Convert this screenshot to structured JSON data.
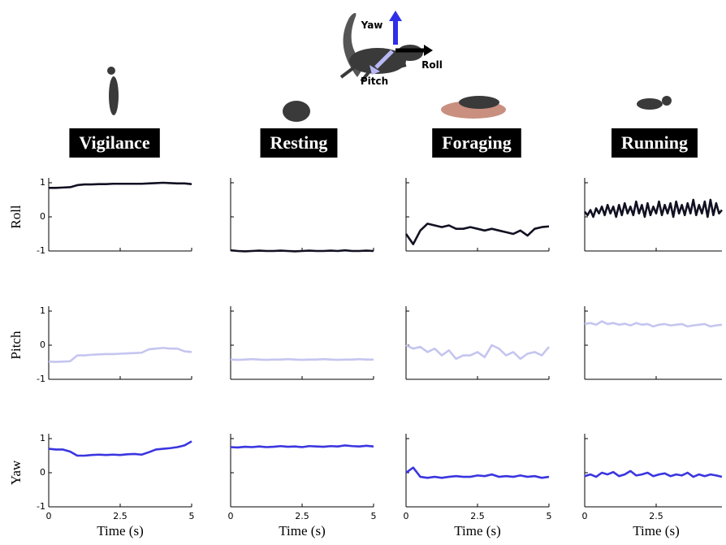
{
  "axes_diagram": {
    "yaw": "Yaw",
    "roll": "Roll",
    "pitch": "Pitch"
  },
  "columns": [
    "Vigilance",
    "Resting",
    "Foraging",
    "Running"
  ],
  "chart_data": [
    {
      "type": "line",
      "ylabel": "Roll",
      "color": "#111122",
      "xlim": [
        0,
        5
      ],
      "ylim": [
        -1,
        1
      ],
      "xticks": [
        0,
        2.5,
        5
      ],
      "yticks": [
        -1,
        0,
        1
      ],
      "x": [
        0,
        0.25,
        0.5,
        0.75,
        1,
        1.25,
        1.5,
        1.75,
        2,
        2.25,
        2.5,
        2.75,
        3,
        3.25,
        3.5,
        3.75,
        4,
        4.25,
        4.5,
        4.75,
        5
      ],
      "values": [
        0.85,
        0.85,
        0.86,
        0.87,
        0.93,
        0.95,
        0.95,
        0.96,
        0.96,
        0.97,
        0.97,
        0.97,
        0.97,
        0.97,
        0.98,
        0.99,
        1.0,
        0.99,
        0.98,
        0.98,
        0.96
      ]
    },
    {
      "type": "line",
      "color": "#111122",
      "xlim": [
        0,
        5
      ],
      "ylim": [
        -1,
        1
      ],
      "xticks": [
        0,
        2.5,
        5
      ],
      "yticks": [
        -1,
        0,
        1
      ],
      "x": [
        0,
        0.25,
        0.5,
        0.75,
        1,
        1.25,
        1.5,
        1.75,
        2,
        2.25,
        2.5,
        2.75,
        3,
        3.25,
        3.5,
        3.75,
        4,
        4.25,
        4.5,
        4.75,
        5
      ],
      "values": [
        -0.98,
        -1.0,
        -1.01,
        -1.0,
        -0.99,
        -1.0,
        -1.0,
        -0.99,
        -1.0,
        -1.01,
        -1.0,
        -0.99,
        -1.0,
        -1.0,
        -0.99,
        -1.0,
        -0.98,
        -1.0,
        -1.0,
        -0.99,
        -1.0
      ]
    },
    {
      "type": "line",
      "color": "#111122",
      "xlim": [
        0,
        5
      ],
      "ylim": [
        -1,
        1
      ],
      "xticks": [
        0,
        2.5,
        5
      ],
      "yticks": [
        -1,
        0,
        1
      ],
      "x": [
        0,
        0.25,
        0.5,
        0.75,
        1,
        1.25,
        1.5,
        1.75,
        2,
        2.25,
        2.5,
        2.75,
        3,
        3.25,
        3.5,
        3.75,
        4,
        4.25,
        4.5,
        4.75,
        5
      ],
      "values": [
        -0.5,
        -0.8,
        -0.4,
        -0.2,
        -0.25,
        -0.3,
        -0.25,
        -0.35,
        -0.35,
        -0.3,
        -0.35,
        -0.4,
        -0.35,
        -0.4,
        -0.45,
        -0.5,
        -0.4,
        -0.55,
        -0.35,
        -0.3,
        -0.28
      ]
    },
    {
      "type": "line",
      "color": "#111122",
      "xlim": [
        0,
        4.8
      ],
      "ylim": [
        -1,
        1
      ],
      "xticks": [
        0,
        2.5
      ],
      "yticks": [
        -1,
        0,
        1
      ],
      "x": [
        0,
        0.1,
        0.2,
        0.3,
        0.4,
        0.5,
        0.6,
        0.7,
        0.8,
        0.9,
        1,
        1.1,
        1.2,
        1.3,
        1.4,
        1.5,
        1.6,
        1.7,
        1.8,
        1.9,
        2,
        2.1,
        2.2,
        2.3,
        2.4,
        2.5,
        2.6,
        2.7,
        2.8,
        2.9,
        3,
        3.1,
        3.2,
        3.3,
        3.4,
        3.5,
        3.6,
        3.7,
        3.8,
        3.9,
        4,
        4.1,
        4.2,
        4.3,
        4.4,
        4.5,
        4.6,
        4.7,
        4.8
      ],
      "values": [
        0.15,
        0.05,
        0.2,
        0.0,
        0.25,
        0.1,
        0.3,
        0.05,
        0.35,
        0.1,
        0.3,
        0.0,
        0.35,
        0.05,
        0.4,
        0.1,
        0.3,
        0.05,
        0.45,
        0.1,
        0.35,
        0.0,
        0.4,
        0.05,
        0.3,
        0.1,
        0.45,
        0.05,
        0.35,
        0.1,
        0.4,
        0.0,
        0.45,
        0.1,
        0.35,
        0.05,
        0.4,
        0.1,
        0.5,
        0.05,
        0.35,
        0.1,
        0.45,
        0.0,
        0.5,
        0.05,
        0.4,
        0.1,
        0.2
      ]
    },
    {
      "type": "line",
      "ylabel": "Pitch",
      "color": "#c5c5f0",
      "xlim": [
        0,
        5
      ],
      "ylim": [
        -1,
        1
      ],
      "xticks": [
        0,
        2.5,
        5
      ],
      "yticks": [
        -1,
        0,
        1
      ],
      "x": [
        0,
        0.25,
        0.5,
        0.75,
        1,
        1.25,
        1.5,
        1.75,
        2,
        2.25,
        2.5,
        2.75,
        3,
        3.25,
        3.5,
        3.75,
        4,
        4.25,
        4.5,
        4.75,
        5
      ],
      "values": [
        -0.48,
        -0.49,
        -0.48,
        -0.47,
        -0.3,
        -0.3,
        -0.28,
        -0.27,
        -0.26,
        -0.26,
        -0.25,
        -0.24,
        -0.23,
        -0.22,
        -0.12,
        -0.1,
        -0.08,
        -0.1,
        -0.1,
        -0.18,
        -0.2
      ]
    },
    {
      "type": "line",
      "color": "#c5c5f0",
      "xlim": [
        0,
        5
      ],
      "ylim": [
        -1,
        1
      ],
      "xticks": [
        0,
        2.5,
        5
      ],
      "yticks": [
        -1,
        0,
        1
      ],
      "x": [
        0,
        0.25,
        0.5,
        0.75,
        1,
        1.25,
        1.5,
        1.75,
        2,
        2.25,
        2.5,
        2.75,
        3,
        3.25,
        3.5,
        3.75,
        4,
        4.25,
        4.5,
        4.75,
        5
      ],
      "values": [
        -0.42,
        -0.43,
        -0.42,
        -0.41,
        -0.42,
        -0.43,
        -0.42,
        -0.42,
        -0.41,
        -0.42,
        -0.43,
        -0.42,
        -0.42,
        -0.41,
        -0.42,
        -0.43,
        -0.42,
        -0.42,
        -0.41,
        -0.42,
        -0.42
      ]
    },
    {
      "type": "line",
      "color": "#c5c5f0",
      "xlim": [
        0,
        5
      ],
      "ylim": [
        -1,
        1
      ],
      "xticks": [
        0,
        2.5,
        5
      ],
      "yticks": [
        -1,
        0,
        1
      ],
      "x": [
        0,
        0.25,
        0.5,
        0.75,
        1,
        1.25,
        1.5,
        1.75,
        2,
        2.25,
        2.5,
        2.75,
        3,
        3.25,
        3.5,
        3.75,
        4,
        4.25,
        4.5,
        4.75,
        5
      ],
      "values": [
        0.0,
        -0.1,
        -0.05,
        -0.2,
        -0.1,
        -0.3,
        -0.15,
        -0.4,
        -0.3,
        -0.3,
        -0.2,
        -0.35,
        0.0,
        -0.1,
        -0.3,
        -0.2,
        -0.4,
        -0.25,
        -0.2,
        -0.3,
        -0.05
      ]
    },
    {
      "type": "line",
      "color": "#c5c5f0",
      "xlim": [
        0,
        4.8
      ],
      "ylim": [
        -1,
        1
      ],
      "xticks": [
        0,
        2.5
      ],
      "yticks": [
        -1,
        0,
        1
      ],
      "x": [
        0,
        0.2,
        0.4,
        0.6,
        0.8,
        1,
        1.2,
        1.4,
        1.6,
        1.8,
        2,
        2.2,
        2.4,
        2.6,
        2.8,
        3,
        3.2,
        3.4,
        3.6,
        3.8,
        4,
        4.2,
        4.4,
        4.6,
        4.8
      ],
      "values": [
        0.62,
        0.65,
        0.6,
        0.7,
        0.62,
        0.65,
        0.6,
        0.63,
        0.58,
        0.65,
        0.6,
        0.62,
        0.55,
        0.6,
        0.62,
        0.58,
        0.6,
        0.62,
        0.55,
        0.58,
        0.6,
        0.62,
        0.55,
        0.58,
        0.6
      ]
    },
    {
      "type": "line",
      "ylabel": "Yaw",
      "xlabel": "Time (s)",
      "color": "#3a35e0",
      "xlim": [
        0,
        5
      ],
      "ylim": [
        -1,
        1
      ],
      "xticks": [
        0,
        2.5,
        5
      ],
      "yticks": [
        -1,
        0,
        1
      ],
      "x": [
        0,
        0.25,
        0.5,
        0.75,
        1,
        1.25,
        1.5,
        1.75,
        2,
        2.25,
        2.5,
        2.75,
        3,
        3.25,
        3.5,
        3.75,
        4,
        4.25,
        4.5,
        4.75,
        5
      ],
      "values": [
        0.7,
        0.68,
        0.68,
        0.62,
        0.5,
        0.5,
        0.52,
        0.53,
        0.52,
        0.53,
        0.52,
        0.54,
        0.55,
        0.53,
        0.6,
        0.68,
        0.7,
        0.72,
        0.75,
        0.8,
        0.92
      ]
    },
    {
      "type": "line",
      "xlabel": "Time (s)",
      "color": "#3a35e0",
      "xlim": [
        0,
        5
      ],
      "ylim": [
        -1,
        1
      ],
      "xticks": [
        0,
        2.5,
        5
      ],
      "yticks": [
        -1,
        0,
        1
      ],
      "x": [
        0,
        0.25,
        0.5,
        0.75,
        1,
        1.25,
        1.5,
        1.75,
        2,
        2.25,
        2.5,
        2.75,
        3,
        3.25,
        3.5,
        3.75,
        4,
        4.25,
        4.5,
        4.75,
        5
      ],
      "values": [
        0.75,
        0.74,
        0.76,
        0.75,
        0.77,
        0.75,
        0.76,
        0.78,
        0.76,
        0.77,
        0.75,
        0.78,
        0.77,
        0.76,
        0.78,
        0.77,
        0.8,
        0.78,
        0.77,
        0.79,
        0.77
      ]
    },
    {
      "type": "line",
      "xlabel": "Time (s)",
      "color": "#3a35e0",
      "xlim": [
        0,
        5
      ],
      "ylim": [
        -1,
        1
      ],
      "xticks": [
        0,
        2.5,
        5
      ],
      "yticks": [
        -1,
        0,
        1
      ],
      "x": [
        0,
        0.25,
        0.5,
        0.75,
        1,
        1.25,
        1.5,
        1.75,
        2,
        2.25,
        2.5,
        2.75,
        3,
        3.25,
        3.5,
        3.75,
        4,
        4.25,
        4.5,
        4.75,
        5
      ],
      "values": [
        0.0,
        0.15,
        -0.12,
        -0.15,
        -0.12,
        -0.15,
        -0.12,
        -0.1,
        -0.12,
        -0.12,
        -0.08,
        -0.1,
        -0.05,
        -0.12,
        -0.1,
        -0.12,
        -0.08,
        -0.12,
        -0.1,
        -0.15,
        -0.12
      ]
    },
    {
      "type": "line",
      "xlabel": "Time (s)",
      "color": "#3a35e0",
      "xlim": [
        0,
        4.8
      ],
      "ylim": [
        -1,
        1
      ],
      "xticks": [
        0,
        2.5
      ],
      "yticks": [
        -1,
        0,
        1
      ],
      "x": [
        0,
        0.2,
        0.4,
        0.6,
        0.8,
        1,
        1.2,
        1.4,
        1.6,
        1.8,
        2,
        2.2,
        2.4,
        2.6,
        2.8,
        3,
        3.2,
        3.4,
        3.6,
        3.8,
        4,
        4.2,
        4.4,
        4.6,
        4.8
      ],
      "values": [
        -0.1,
        -0.05,
        -0.12,
        0.0,
        -0.05,
        0.02,
        -0.1,
        -0.05,
        0.05,
        -0.08,
        -0.05,
        0.0,
        -0.1,
        -0.05,
        -0.02,
        -0.1,
        -0.05,
        -0.08,
        0.0,
        -0.12,
        -0.05,
        -0.1,
        -0.05,
        -0.08,
        -0.12
      ]
    }
  ]
}
